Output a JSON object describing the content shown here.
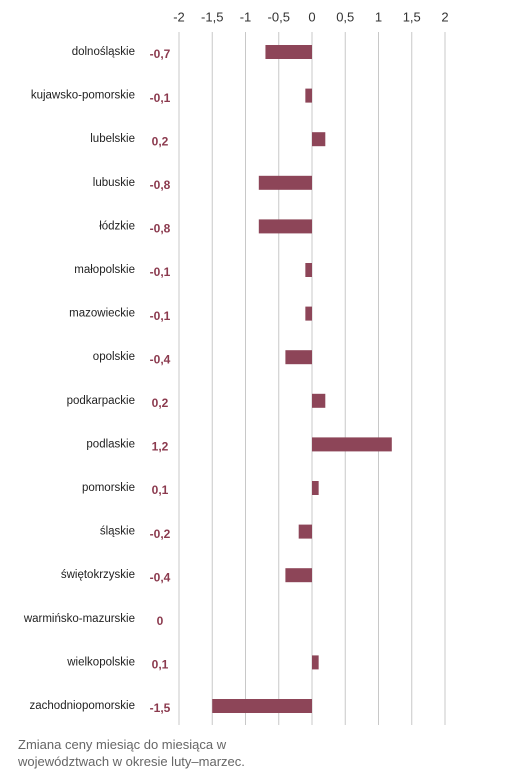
{
  "chart_data": {
    "type": "bar",
    "orientation": "horizontal",
    "categories": [
      "dolnośląskie",
      "kujawsko-pomorskie",
      "lubelskie",
      "lubuskie",
      "łódzkie",
      "małopolskie",
      "mazowieckie",
      "opolskie",
      "podkarpackie",
      "podlaskie",
      "pomorskie",
      "śląskie",
      "świętokrzyskie",
      "warmińsko-mazurskie",
      "wielkopolskie",
      "zachodniopomorskie"
    ],
    "values": [
      -0.7,
      -0.1,
      0.2,
      -0.8,
      -0.8,
      -0.1,
      -0.1,
      -0.4,
      0.2,
      1.2,
      0.1,
      -0.2,
      -0.4,
      0,
      0.1,
      -1.5
    ],
    "value_labels": [
      "-0,7",
      "-0,1",
      "0,2",
      "-0,8",
      "-0,8",
      "-0,1",
      "-0,1",
      "-0,4",
      "0,2",
      "1,2",
      "0,1",
      "-0,2",
      "-0,4",
      "0",
      "0,1",
      "-1,5"
    ],
    "color": "#8d4558",
    "xlim": [
      -2,
      2
    ],
    "xticks": [
      -2,
      {
        "value": -1.5,
        "label": "-1,5"
      },
      -1,
      {
        "value": -0.5,
        "label": "-0,5"
      },
      0,
      {
        "value": 0.5,
        "label": "0,5"
      },
      1,
      {
        "value": 1.5,
        "label": "1,5"
      },
      2
    ],
    "grid": true,
    "caption": "Zmiana ceny miesiąc do miesiąca w województwach w okresie luty–marzec."
  }
}
